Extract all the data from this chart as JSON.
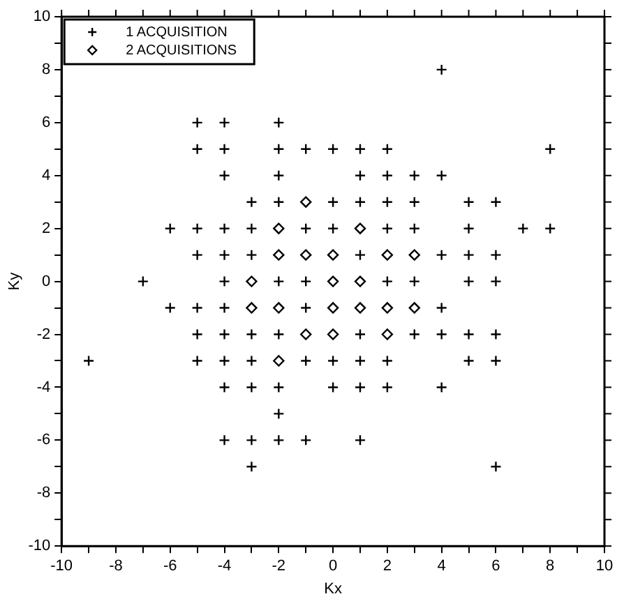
{
  "chart_data": {
    "type": "scatter",
    "xlabel": "Kx",
    "ylabel": "Ky",
    "xlim": [
      -10,
      10
    ],
    "ylim": [
      -10,
      10
    ],
    "xticks": [
      -10,
      {
        "value": -9,
        "label": null
      },
      -8,
      {
        "value": -7,
        "label": null
      },
      -6,
      {
        "value": -5,
        "label": null
      },
      -4,
      {
        "value": -3,
        "label": null
      },
      -2,
      {
        "value": -1,
        "label": null
      },
      0,
      {
        "value": 1,
        "label": null
      },
      2,
      {
        "value": 3,
        "label": null
      },
      4,
      {
        "value": 5,
        "label": null
      },
      6,
      {
        "value": 7,
        "label": null
      },
      8,
      {
        "value": 9,
        "label": null
      },
      10
    ],
    "yticks": [
      -10,
      {
        "value": -9,
        "label": null
      },
      -8,
      {
        "value": -7,
        "label": null
      },
      -6,
      {
        "value": -5,
        "label": null
      },
      -4,
      {
        "value": -3,
        "label": null
      },
      -2,
      {
        "value": -1,
        "label": null
      },
      0,
      {
        "value": 1,
        "label": null
      },
      2,
      {
        "value": 3,
        "label": null
      },
      4,
      {
        "value": 5,
        "label": null
      },
      6,
      {
        "value": 7,
        "label": null
      },
      8,
      {
        "value": 9,
        "label": null
      },
      10
    ],
    "grid": false,
    "legend": "top left",
    "series": [
      {
        "name": "1 ACQUISITION",
        "color": "#000000",
        "marker": "cross",
        "x": [
          4,
          -5,
          -4,
          -2,
          -5,
          -4,
          -2,
          -1,
          0,
          1,
          2,
          8,
          -4,
          -2,
          1,
          2,
          3,
          4,
          -3,
          -2,
          0,
          1,
          2,
          3,
          5,
          6,
          -6,
          -5,
          -4,
          -3,
          -1,
          0,
          2,
          3,
          5,
          7,
          8,
          -5,
          -4,
          -3,
          1,
          4,
          5,
          6,
          -7,
          -4,
          -2,
          -1,
          2,
          3,
          5,
          6,
          -6,
          -5,
          -4,
          -1,
          4,
          -5,
          -4,
          -3,
          -2,
          1,
          3,
          4,
          5,
          6,
          -9,
          -5,
          -4,
          -3,
          -1,
          0,
          1,
          2,
          5,
          6,
          -4,
          -3,
          -2,
          0,
          1,
          2,
          4,
          -2,
          -4,
          -3,
          -2,
          -1,
          1,
          -3,
          6
        ],
        "values": [
          8,
          6,
          6,
          6,
          5,
          5,
          5,
          5,
          5,
          5,
          5,
          5,
          4,
          4,
          4,
          4,
          4,
          4,
          3,
          3,
          3,
          3,
          3,
          3,
          3,
          3,
          2,
          2,
          2,
          2,
          2,
          2,
          2,
          2,
          2,
          2,
          2,
          1,
          1,
          1,
          1,
          1,
          1,
          1,
          0,
          0,
          0,
          0,
          0,
          0,
          0,
          0,
          -1,
          -1,
          -1,
          -1,
          -1,
          -2,
          -2,
          -2,
          -2,
          -2,
          -2,
          -2,
          -2,
          -2,
          -3,
          -3,
          -3,
          -3,
          -3,
          -3,
          -3,
          -3,
          -3,
          -3,
          -4,
          -4,
          -4,
          -4,
          -4,
          -4,
          -4,
          -5,
          -6,
          -6,
          -6,
          -6,
          -6,
          -7,
          -7
        ]
      },
      {
        "name": "2 ACQUISITIONS",
        "color": "#000000",
        "marker": "diamond",
        "x": [
          -1,
          -2,
          1,
          -2,
          -1,
          0,
          2,
          3,
          -3,
          0,
          1,
          -3,
          -2,
          0,
          1,
          2,
          3,
          -1,
          0,
          2,
          -2
        ],
        "values": [
          3,
          2,
          2,
          1,
          1,
          1,
          1,
          1,
          0,
          0,
          0,
          -1,
          -1,
          -1,
          -1,
          -1,
          -1,
          -2,
          -2,
          -2,
          -3
        ]
      }
    ]
  }
}
